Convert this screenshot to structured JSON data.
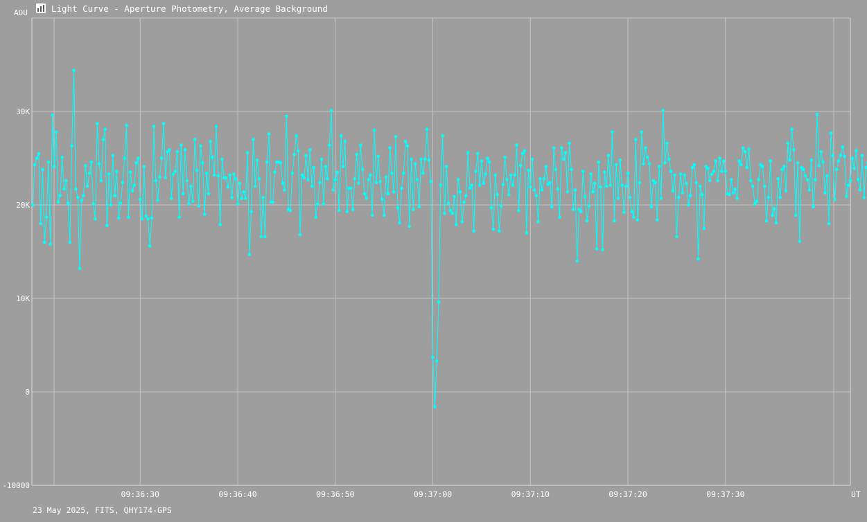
{
  "window": {
    "title": "Light Curve - Aperture Photometry, Average Background",
    "icon": "chart-app-icon"
  },
  "footer": {
    "info": "23 May 2025, FITS, QHY174-GPS"
  },
  "colors": {
    "background": "#9e9e9e",
    "grid": "#c4c4c4",
    "series": "#00ffff",
    "text": "#ffffff"
  },
  "chart_data": {
    "type": "line",
    "title": "",
    "xlabel": "UT",
    "ylabel": "ADU",
    "ylim": [
      -10000,
      40000
    ],
    "yticks": [
      -10000,
      0,
      10000,
      20000,
      30000
    ],
    "ytick_labels": [
      "-10000",
      "0",
      "10K",
      "20K",
      "30K"
    ],
    "xlim": [
      "09:36:18.9",
      "09:37:42.8"
    ],
    "xticks": [
      "09:36:30",
      "09:36:40",
      "09:36:50",
      "09:37:00",
      "09:37:10",
      "09:37:20",
      "09:37:30"
    ],
    "xtick_labels": [
      "09:36:30",
      "09:36:40",
      "09:36:50",
      "09:37:00",
      "09:37:10",
      "09:37:20",
      "09:37:30"
    ],
    "grid": true,
    "markers": true,
    "series": [
      {
        "name": "",
        "x_start": "09:36:19.0",
        "x_step_seconds": 0.2,
        "values": [
          20000,
          24300,
          25000,
          25500,
          18000,
          23800,
          16000,
          18700,
          24600,
          15800,
          29600,
          24100,
          27800,
          20300,
          21000,
          25100,
          21700,
          22600,
          20200,
          16000,
          26300,
          34400,
          21700,
          20800,
          13200,
          20500,
          21000,
          24200,
          22000,
          23400,
          24600,
          20100,
          18500,
          28700,
          24400,
          22600,
          27000,
          28100,
          17800,
          23300,
          20000,
          25300,
          21000,
          23600,
          18600,
          20200,
          22400,
          25000,
          28500,
          18700,
          23500,
          21500,
          22100,
          24500,
          25000,
          20600,
          18500,
          24100,
          18800,
          18500,
          15600,
          18600,
          28400,
          22600,
          20500,
          23000,
          25000,
          28700,
          22900,
          25700,
          25900,
          20700,
          23300,
          23600,
          25700,
          18700,
          26400,
          21200,
          25900,
          22600,
          20100,
          22000,
          20400,
          27000,
          23700,
          19900,
          26300,
          24500,
          19000,
          23400,
          21200,
          26800,
          25100,
          23200,
          28400,
          23100,
          17900,
          24900,
          22900,
          22900,
          21900,
          23200,
          20800,
          23300,
          22800,
          20100,
          22300,
          20700,
          21400,
          20700,
          25600,
          14700,
          19300,
          27000,
          22000,
          24800,
          22800,
          16600,
          20800,
          16600,
          24600,
          27600,
          20300,
          20300,
          23500,
          24600,
          24600,
          24500,
          22300,
          21600,
          29500,
          19500,
          19400,
          23400,
          25400,
          27400,
          25800,
          16800,
          23200,
          22900,
          25300,
          22700,
          25900,
          22000,
          24000,
          18700,
          20100,
          22400,
          24900,
          20100,
          24100,
          22800,
          26400,
          30100,
          21600,
          22700,
          23500,
          19400,
          27400,
          24100,
          26800,
          19300,
          21800,
          21800,
          19500,
          22800,
          25400,
          22300,
          26400,
          23800,
          21200,
          20700,
          22700,
          23200,
          18900,
          28000,
          22400,
          25200,
          22500,
          20600,
          18900,
          23000,
          21200,
          26100,
          23400,
          21400,
          27300,
          19700,
          18100,
          21800,
          23400,
          26800,
          26300,
          17700,
          24900,
          19500,
          24400,
          22700,
          19800,
          24900,
          23400,
          24900,
          28100,
          24800,
          22500,
          3700,
          -1600,
          3300,
          9600,
          22100,
          27400,
          19100,
          24100,
          20200,
          19400,
          19100,
          20900,
          17900,
          22700,
          21400,
          18200,
          20300,
          21000,
          25600,
          21800,
          22100,
          17200,
          23600,
          25500,
          22100,
          24700,
          22300,
          23300,
          25000,
          24600,
          19700,
          17400,
          23200,
          21100,
          17200,
          19900,
          22200,
          25100,
          22700,
          21100,
          23200,
          22100,
          23200,
          26400,
          19400,
          24200,
          25500,
          25800,
          17000,
          23700,
          21900,
          24900,
          21600,
          21000,
          18200,
          22800,
          21600,
          22800,
          24100,
          22200,
          22400,
          19800,
          26100,
          23800,
          21700,
          18700,
          26100,
          24900,
          25600,
          21400,
          26600,
          23800,
          19500,
          21600,
          14000,
          19500,
          19300,
          23600,
          20900,
          18300,
          19900,
          23300,
          21400,
          22300,
          15300,
          24600,
          21900,
          15200,
          23500,
          22000,
          25300,
          22100,
          27800,
          18300,
          24300,
          20700,
          24800,
          22100,
          19200,
          22000,
          23400,
          20800,
          19300,
          18700,
          27000,
          18400,
          22400,
          27800,
          24400,
          26100,
          25100,
          24400,
          19800,
          22600,
          22400,
          18400,
          24100,
          20700,
          30100,
          24500,
          26600,
          24900,
          23600,
          21500,
          23200,
          16600,
          20800,
          23300,
          21300,
          23200,
          22300,
          20000,
          21000,
          24000,
          24300,
          22400,
          14200,
          22000,
          21100,
          17500,
          24100,
          23900,
          22600,
          23300,
          23600,
          24700,
          22600,
          25000,
          23600,
          24700,
          23600,
          21200,
          21100,
          22700,
          21300,
          21700,
          20700,
          24700,
          24300,
          26100,
          25700,
          24000,
          26000,
          22600,
          22000,
          20100,
          20400,
          22700,
          24300,
          24100,
          22000,
          18300,
          20800,
          24700,
          18900,
          19600,
          18100,
          22800,
          20800,
          23800,
          24100,
          21500,
          26600,
          24800,
          28100,
          25900,
          18900,
          24500,
          16100,
          24000,
          23800,
          23100,
          22700,
          21600,
          24800,
          19800,
          22700,
          29700,
          24200,
          25700,
          24600,
          21300,
          23100,
          18000,
          27700,
          25300,
          20600,
          23800,
          24700,
          25300,
          26200,
          25200,
          20900,
          22100,
          22600,
          25000,
          23900,
          25800,
          22700,
          21600,
          25300,
          20800,
          24000,
          24500,
          21700,
          21400,
          24200,
          27500,
          24100,
          23700,
          19300,
          23000,
          21600,
          24800,
          23900,
          24900,
          20800,
          22100,
          21700,
          17400,
          21600,
          24700,
          18000,
          25500,
          22000,
          20800,
          22700,
          25600,
          18800,
          24300,
          24200,
          19800,
          20300,
          21500,
          24900,
          24500,
          26100,
          23700,
          26000,
          23500,
          23300,
          21000,
          18300,
          18100,
          25900,
          23200,
          18100,
          24400,
          24700,
          22000,
          17800,
          18700,
          24900,
          21000,
          20800,
          24800,
          21200,
          25300,
          17700,
          25500,
          18500,
          22400,
          21600,
          25500,
          25000
        ]
      }
    ]
  }
}
